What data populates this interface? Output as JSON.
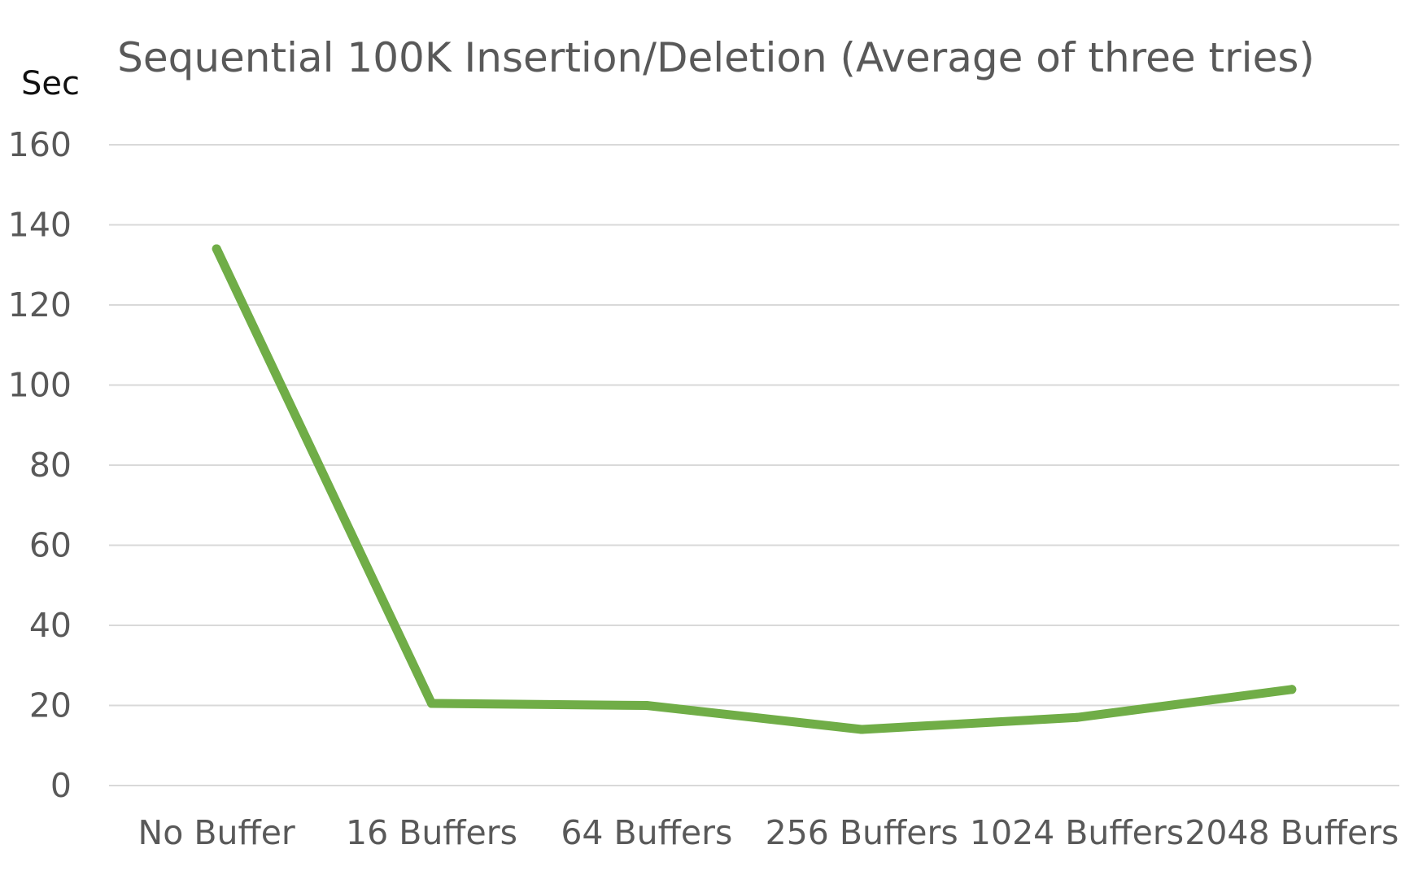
{
  "chart_data": {
    "type": "line",
    "title": "Sequential 100K Insertion/Deletion (Average of three tries)",
    "ylabel": "Sec",
    "xlabel": "",
    "categories": [
      "No Buffer",
      "16 Buffers",
      "64 Buffers",
      "256 Buffers",
      "1024 Buffers",
      "2048 Buffers"
    ],
    "series": [
      {
        "values": [
          134,
          20.5,
          20,
          14,
          17,
          24
        ],
        "color": "#70ad47"
      }
    ],
    "ylim": [
      0,
      160
    ],
    "yticks": [
      "0",
      "20",
      "40",
      "60",
      "80",
      "100",
      "120",
      "140",
      "160"
    ],
    "grid": true,
    "legend": "none"
  }
}
